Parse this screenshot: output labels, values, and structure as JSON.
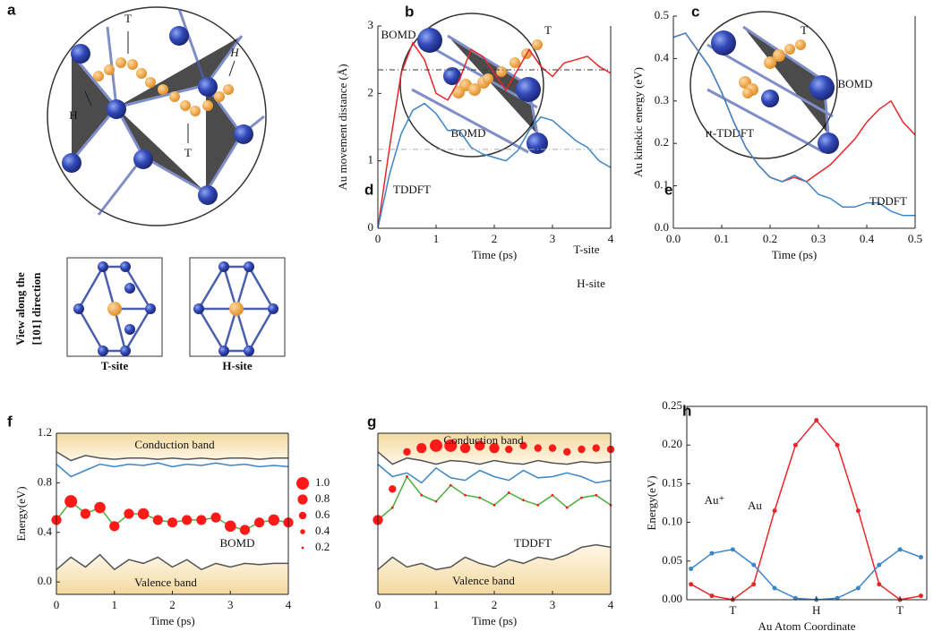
{
  "panels": {
    "a": {
      "label": "a",
      "t_top": "T",
      "t_bottom": "T",
      "h_left": "H",
      "h_right": "H"
    },
    "b": {
      "label": "b",
      "t": "T",
      "method": "BOMD"
    },
    "c": {
      "label": "c",
      "t": "T",
      "method": "rt-TDDFT"
    },
    "inset": {
      "side_label": [
        "View along the",
        "[101] direction"
      ],
      "t_site": "T-site",
      "h_site": "H-site"
    }
  },
  "chart_data": [
    {
      "type": "line",
      "panel_label": "d",
      "xlabel": "Time (ps)",
      "ylabel": "Au movement distance (Å)",
      "x": [
        0,
        0.2,
        0.4,
        0.6,
        0.8,
        1.0,
        1.2,
        1.4,
        1.6,
        1.8,
        2.0,
        2.2,
        2.4,
        2.6,
        2.8,
        3.0,
        3.2,
        3.4,
        3.6,
        3.8,
        4.0
      ],
      "series": [
        {
          "name": "BOMD",
          "color": "#e8262a",
          "values": [
            0,
            1.2,
            2.3,
            2.75,
            2.5,
            2.0,
            1.9,
            2.2,
            2.65,
            2.55,
            2.3,
            2.05,
            2.35,
            2.65,
            2.4,
            2.25,
            2.45,
            2.5,
            2.55,
            2.4,
            2.3
          ]
        },
        {
          "name": "TDDFT",
          "color": "#3b86c8",
          "values": [
            0,
            0.8,
            1.4,
            1.75,
            1.85,
            1.7,
            1.45,
            1.45,
            1.2,
            1.1,
            1.05,
            1.0,
            1.15,
            1.45,
            1.65,
            1.6,
            1.45,
            1.3,
            1.2,
            1.0,
            0.9
          ]
        }
      ],
      "reference_lines": [
        {
          "value": 2.35,
          "label": "T-site",
          "color": "#333333"
        },
        {
          "value": 1.17,
          "label": "H-site",
          "color": "#aaaaaa"
        }
      ],
      "xlim": [
        0,
        4
      ],
      "ylim": [
        0,
        3
      ],
      "xticks": [
        0,
        1,
        2,
        3,
        4
      ],
      "yticks": [
        0,
        1,
        2,
        3
      ]
    },
    {
      "type": "line",
      "panel_label": "e",
      "xlabel": "Time (ps)",
      "ylabel": "Au kinekic energy (eV)",
      "x": [
        0,
        0.025,
        0.05,
        0.075,
        0.1,
        0.125,
        0.15,
        0.175,
        0.2,
        0.225,
        0.25,
        0.275,
        0.3,
        0.325,
        0.35,
        0.375,
        0.4,
        0.425,
        0.45,
        0.475,
        0.5
      ],
      "series": [
        {
          "name": "BOMD",
          "color": "#e8262a",
          "values": [
            0.45,
            0.46,
            0.42,
            0.38,
            0.32,
            0.25,
            0.19,
            0.15,
            0.12,
            0.11,
            0.12,
            0.11,
            0.13,
            0.15,
            0.18,
            0.21,
            0.25,
            0.28,
            0.3,
            0.25,
            0.22
          ]
        },
        {
          "name": "TDDFT",
          "color": "#3b86c8",
          "values": [
            0.45,
            0.46,
            0.42,
            0.38,
            0.32,
            0.25,
            0.19,
            0.15,
            0.12,
            0.11,
            0.125,
            0.11,
            0.08,
            0.07,
            0.05,
            0.05,
            0.06,
            0.06,
            0.04,
            0.03,
            0.03
          ]
        }
      ],
      "xlim": [
        0,
        0.5
      ],
      "ylim": [
        0,
        0.5
      ],
      "xticks": [
        {
          "value": 0,
          "label": "0.0"
        },
        0.1,
        0.2,
        0.3,
        0.4,
        0.5
      ],
      "yticks": [
        {
          "value": 0,
          "label": "0.0"
        },
        0.1,
        0.2,
        0.3,
        0.4,
        0.5
      ]
    },
    {
      "type": "line",
      "panel_label": "f",
      "xlabel": "Time (ps)",
      "ylabel": "Energy(eV)",
      "annotations": [
        "Conduction band",
        "BOMD",
        "Valence band"
      ],
      "x": [
        0,
        0.25,
        0.5,
        0.75,
        1,
        1.25,
        1.5,
        1.75,
        2,
        2.25,
        2.5,
        2.75,
        3,
        3.25,
        3.5,
        3.75,
        4
      ],
      "series": [
        {
          "color": "#555555",
          "fill": "above",
          "values": [
            1.05,
            0.98,
            1.02,
            1.0,
            0.99,
            1.0,
            1.0,
            0.99,
            1.0,
            0.99,
            1.0,
            0.99,
            1.0,
            1.0,
            0.99,
            1.0,
            1.0
          ]
        },
        {
          "color": "#555555",
          "fill": "below",
          "values": [
            0.1,
            0.2,
            0.12,
            0.22,
            0.1,
            0.18,
            0.15,
            0.2,
            0.12,
            0.18,
            0.1,
            0.15,
            0.12,
            0.15,
            0.14,
            0.15,
            0.15
          ]
        },
        {
          "color": "#3b86c8",
          "values": [
            0.95,
            0.85,
            0.9,
            0.95,
            0.93,
            0.95,
            0.94,
            0.96,
            0.93,
            0.95,
            0.94,
            0.96,
            0.94,
            0.95,
            0.93,
            0.94,
            0.93
          ]
        },
        {
          "color": "#4caf3a",
          "dot_color": "#ff1a1a",
          "values": [
            0.5,
            0.65,
            0.55,
            0.6,
            0.45,
            0.55,
            0.55,
            0.5,
            0.48,
            0.5,
            0.5,
            0.52,
            0.45,
            0.42,
            0.48,
            0.5,
            0.48
          ],
          "sizes": [
            0.8,
            1.0,
            0.8,
            0.9,
            0.8,
            0.8,
            0.9,
            0.8,
            0.8,
            0.8,
            0.8,
            0.8,
            0.9,
            0.8,
            0.8,
            0.9,
            0.8
          ]
        }
      ],
      "size_legend": [
        {
          "value": 1.0,
          "label": "1.0"
        },
        0.8,
        0.6,
        0.4,
        0.2
      ],
      "xlim": [
        0,
        4
      ],
      "ylim": [
        -0.1,
        1.2
      ],
      "xticks": [
        0,
        1,
        2,
        3,
        4
      ],
      "yticks": [
        {
          "value": 0,
          "label": "0.0"
        },
        0.4,
        0.8,
        1.2
      ]
    },
    {
      "type": "line",
      "panel_label": "g",
      "xlabel": "Time (ps)",
      "annotations": [
        "Conduction band",
        "TDDFT",
        "Valence band"
      ],
      "x": [
        0,
        0.25,
        0.5,
        0.75,
        1,
        1.25,
        1.5,
        1.75,
        2,
        2.25,
        2.5,
        2.75,
        3,
        3.25,
        3.5,
        3.75,
        4
      ],
      "series": [
        {
          "color": "#555555",
          "fill": "above",
          "values": [
            1.05,
            0.95,
            1.0,
            0.98,
            0.95,
            0.98,
            0.97,
            0.95,
            0.98,
            0.96,
            0.95,
            0.98,
            0.96,
            0.95,
            0.97,
            0.96,
            0.97
          ]
        },
        {
          "color": "#555555",
          "fill": "below",
          "values": [
            0.1,
            0.2,
            0.12,
            0.15,
            0.1,
            0.12,
            0.2,
            0.15,
            0.12,
            0.18,
            0.15,
            0.2,
            0.18,
            0.22,
            0.28,
            0.3,
            0.28
          ]
        },
        {
          "color": "#3b86c8",
          "values": [
            0.95,
            0.85,
            0.88,
            0.8,
            0.92,
            0.84,
            0.82,
            0.9,
            0.85,
            0.82,
            0.9,
            0.84,
            0.85,
            0.88,
            0.85,
            0.8,
            0.82
          ]
        },
        {
          "color": "#4caf3a",
          "dot_color": "#ff1a1a",
          "values": [
            0.5,
            0.6,
            0.85,
            0.7,
            0.65,
            0.78,
            0.7,
            0.68,
            0.62,
            0.72,
            0.66,
            0.62,
            0.7,
            0.6,
            0.68,
            0.7,
            0.62
          ],
          "sizes": [
            0.2,
            0.2,
            0.2,
            0.2,
            0.2,
            0.2,
            0.2,
            0.2,
            0.2,
            0.2,
            0.2,
            0.2,
            0.2,
            0.2,
            0.2,
            0.2,
            0.2
          ]
        },
        {
          "color": "none",
          "dot_color": "#ff1a1a",
          "values": [
            0.5,
            0.75,
            1.05,
            1.08,
            1.1,
            1.1,
            1.08,
            1.1,
            1.08,
            1.07,
            1.1,
            1.08,
            1.08,
            1.05,
            1.07,
            1.08,
            1.07
          ],
          "sizes": [
            0.8,
            0.6,
            0.6,
            0.8,
            1.0,
            1.0,
            0.8,
            0.8,
            0.8,
            0.6,
            0.6,
            0.6,
            0.6,
            0.6,
            0.6,
            0.6,
            0.6
          ]
        }
      ],
      "xlim": [
        0,
        4
      ],
      "ylim": [
        -0.1,
        1.2
      ],
      "xticks": [
        0,
        1,
        2,
        3,
        4
      ]
    },
    {
      "type": "line",
      "panel_label": "h",
      "xlabel": "Au Atom Coordinate",
      "ylabel": "Energy(eV)",
      "x": [
        -0.5,
        -0.25,
        0,
        0.25,
        0.5,
        0.75,
        1,
        1.25,
        1.5,
        1.75,
        2,
        2.25
      ],
      "series": [
        {
          "name": "Au",
          "color": "#e8262a",
          "markers": true,
          "values": [
            0.02,
            0.005,
            0,
            0.02,
            0.115,
            0.2,
            0.232,
            0.2,
            0.115,
            0.02,
            0,
            0.005
          ]
        },
        {
          "name": "Au⁺",
          "color": "#3b86c8",
          "markers": true,
          "values": [
            0.04,
            0.06,
            0.065,
            0.045,
            0.015,
            0.002,
            0,
            0.002,
            0.015,
            0.045,
            0.065,
            0.055
          ]
        }
      ],
      "xlim": [
        -0.55,
        2.32
      ],
      "ylim": [
        0,
        0.25
      ],
      "xticks": [
        {
          "value": 0,
          "label": "T"
        },
        {
          "value": 1,
          "label": "H"
        },
        {
          "value": 2,
          "label": "T"
        }
      ],
      "yticks": [
        {
          "value": 0,
          "label": "0.00"
        },
        {
          "value": 0.05,
          "label": "0.05"
        },
        {
          "value": 0.1,
          "label": "0.10"
        },
        {
          "value": 0.15,
          "label": "0.15"
        },
        {
          "value": 0.2,
          "label": "0.20"
        },
        {
          "value": 0.25,
          "label": "0.25"
        }
      ]
    }
  ]
}
